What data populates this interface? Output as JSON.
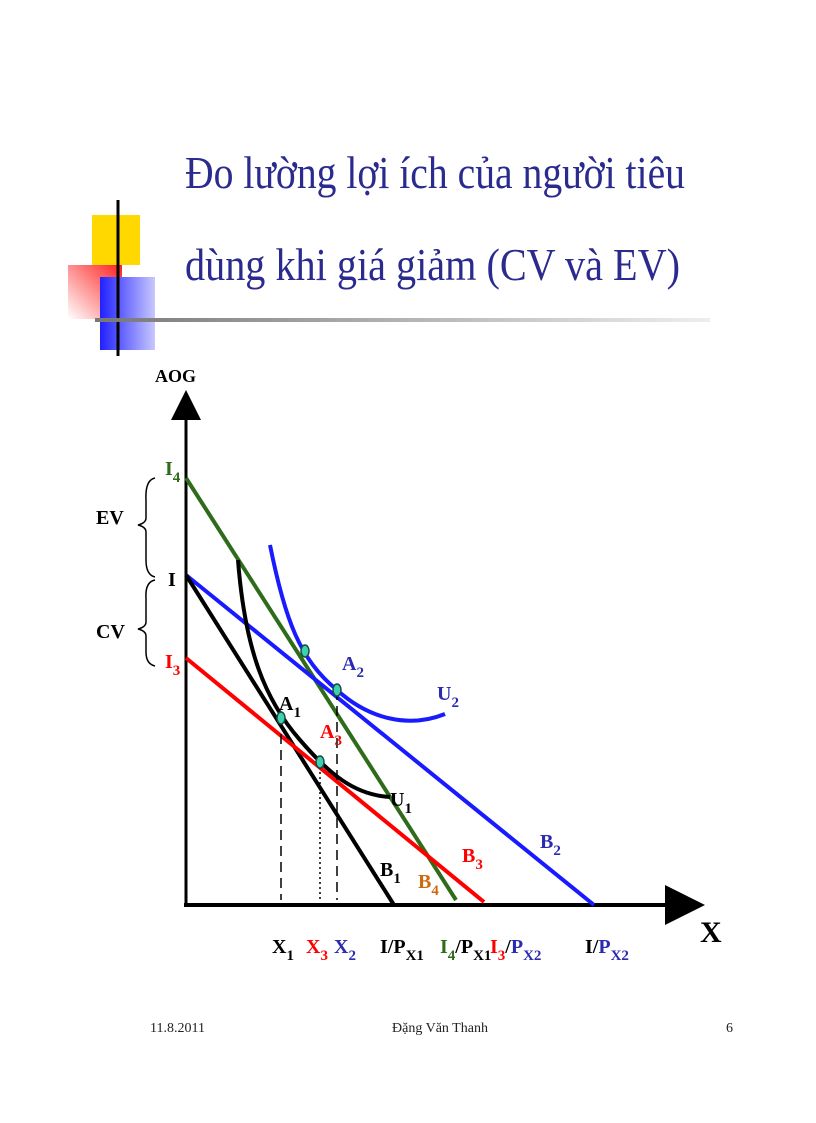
{
  "title": {
    "lines": [
      "Đo lường lợi ích của người tiêu",
      "dùng khi giá giảm (CV và EV)"
    ]
  },
  "diagram": {
    "labels": {
      "aog": [
        {
          "text": "AOG"
        }
      ],
      "i4": [
        {
          "text": "I",
          "sub": "4"
        }
      ],
      "ev": [
        {
          "text": "EV"
        }
      ],
      "i": [
        {
          "text": "I"
        }
      ],
      "cv": [
        {
          "text": "CV"
        }
      ],
      "i3": [
        {
          "text": "I",
          "sub": "3"
        }
      ],
      "a2": [
        {
          "text": "A",
          "sub": "2"
        }
      ],
      "u2": [
        {
          "text": "U",
          "sub": "2"
        }
      ],
      "a1": [
        {
          "text": "A",
          "sub": "1"
        }
      ],
      "a3": [
        {
          "text": "A",
          "sub": "3"
        }
      ],
      "u1": [
        {
          "text": "U",
          "sub": "1"
        }
      ],
      "b2": [
        {
          "text": "B",
          "sub": "2"
        }
      ],
      "b3": [
        {
          "text": "B",
          "sub": "3"
        }
      ],
      "b1": [
        {
          "text": "B",
          "sub": "1"
        }
      ],
      "b4": [
        {
          "text": "B",
          "sub": "4"
        }
      ],
      "x": [
        {
          "text": "X"
        }
      ],
      "x1": [
        {
          "text": "X",
          "sub": "1"
        }
      ],
      "x3": [
        {
          "text": "X",
          "sub": "3"
        }
      ],
      "x2": [
        {
          "text": "X",
          "sub": "2"
        }
      ],
      "ipx1": [
        {
          "text": "I/P",
          "sub": "X1"
        }
      ],
      "i4px1": [
        {
          "text": "I",
          "sub": "4"
        },
        {
          "text": "/P",
          "sub": "X1"
        }
      ],
      "i3px2": [
        {
          "text": "I",
          "sub": "3"
        },
        {
          "text": "/"
        },
        {
          "text": "P",
          "sub": "X2"
        }
      ],
      "ipx2": [
        {
          "text": "I/"
        },
        {
          "text": "P",
          "sub": "X2"
        }
      ]
    }
  },
  "footer": {
    "date": "11.8.2011",
    "author": "Đặng Văn Thanh",
    "page": "6"
  }
}
